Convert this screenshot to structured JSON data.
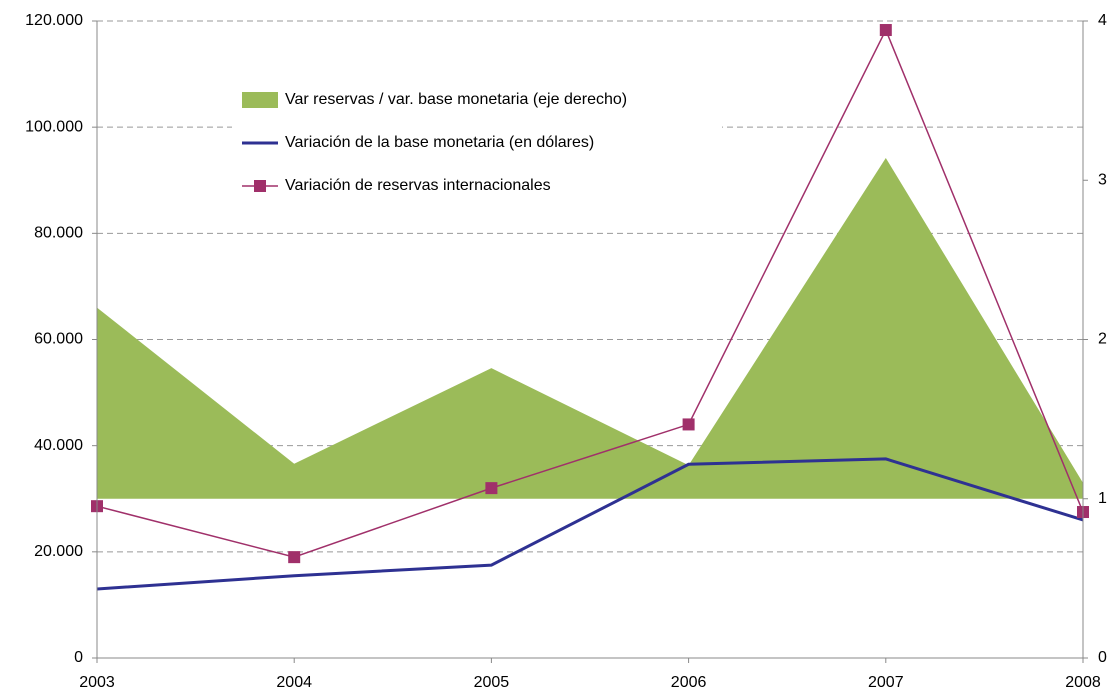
{
  "chart_data": {
    "type": "combo",
    "categories": [
      "2003",
      "2004",
      "2005",
      "2006",
      "2007",
      "2008"
    ],
    "ylim": [
      0,
      120000
    ],
    "yticks": [
      {
        "value": 0,
        "label": "0"
      },
      {
        "value": 20000,
        "label": "20.000"
      },
      {
        "value": 40000,
        "label": "40.000"
      },
      {
        "value": 60000,
        "label": "60.000"
      },
      {
        "value": 80000,
        "label": "80.000"
      },
      {
        "value": 100000,
        "label": "100.000"
      },
      {
        "value": 120000,
        "label": "120.000"
      }
    ],
    "y2lim": [
      0,
      4
    ],
    "y2ticks": [
      0,
      1,
      2,
      3,
      4
    ],
    "grid": true,
    "legend": "upper-left",
    "series": [
      {
        "name": "Var reservas / var. base monetaria (eje derecho)",
        "type": "area",
        "axis": "y2",
        "baseline": 1,
        "color": "#9bbb59",
        "values": [
          2.2,
          1.22,
          1.82,
          1.21,
          3.14,
          1.1
        ]
      },
      {
        "name": "Variación de la base monetaria (en dólares)",
        "type": "line",
        "color": "#2e3192",
        "values": [
          13000,
          15500,
          17500,
          36500,
          37500,
          26000
        ]
      },
      {
        "name": "Variación de reservas internacionales",
        "type": "line",
        "marker": "square",
        "color": "#a0306a",
        "values": [
          28600,
          19000,
          32000,
          44000,
          118300,
          27500
        ]
      }
    ]
  }
}
